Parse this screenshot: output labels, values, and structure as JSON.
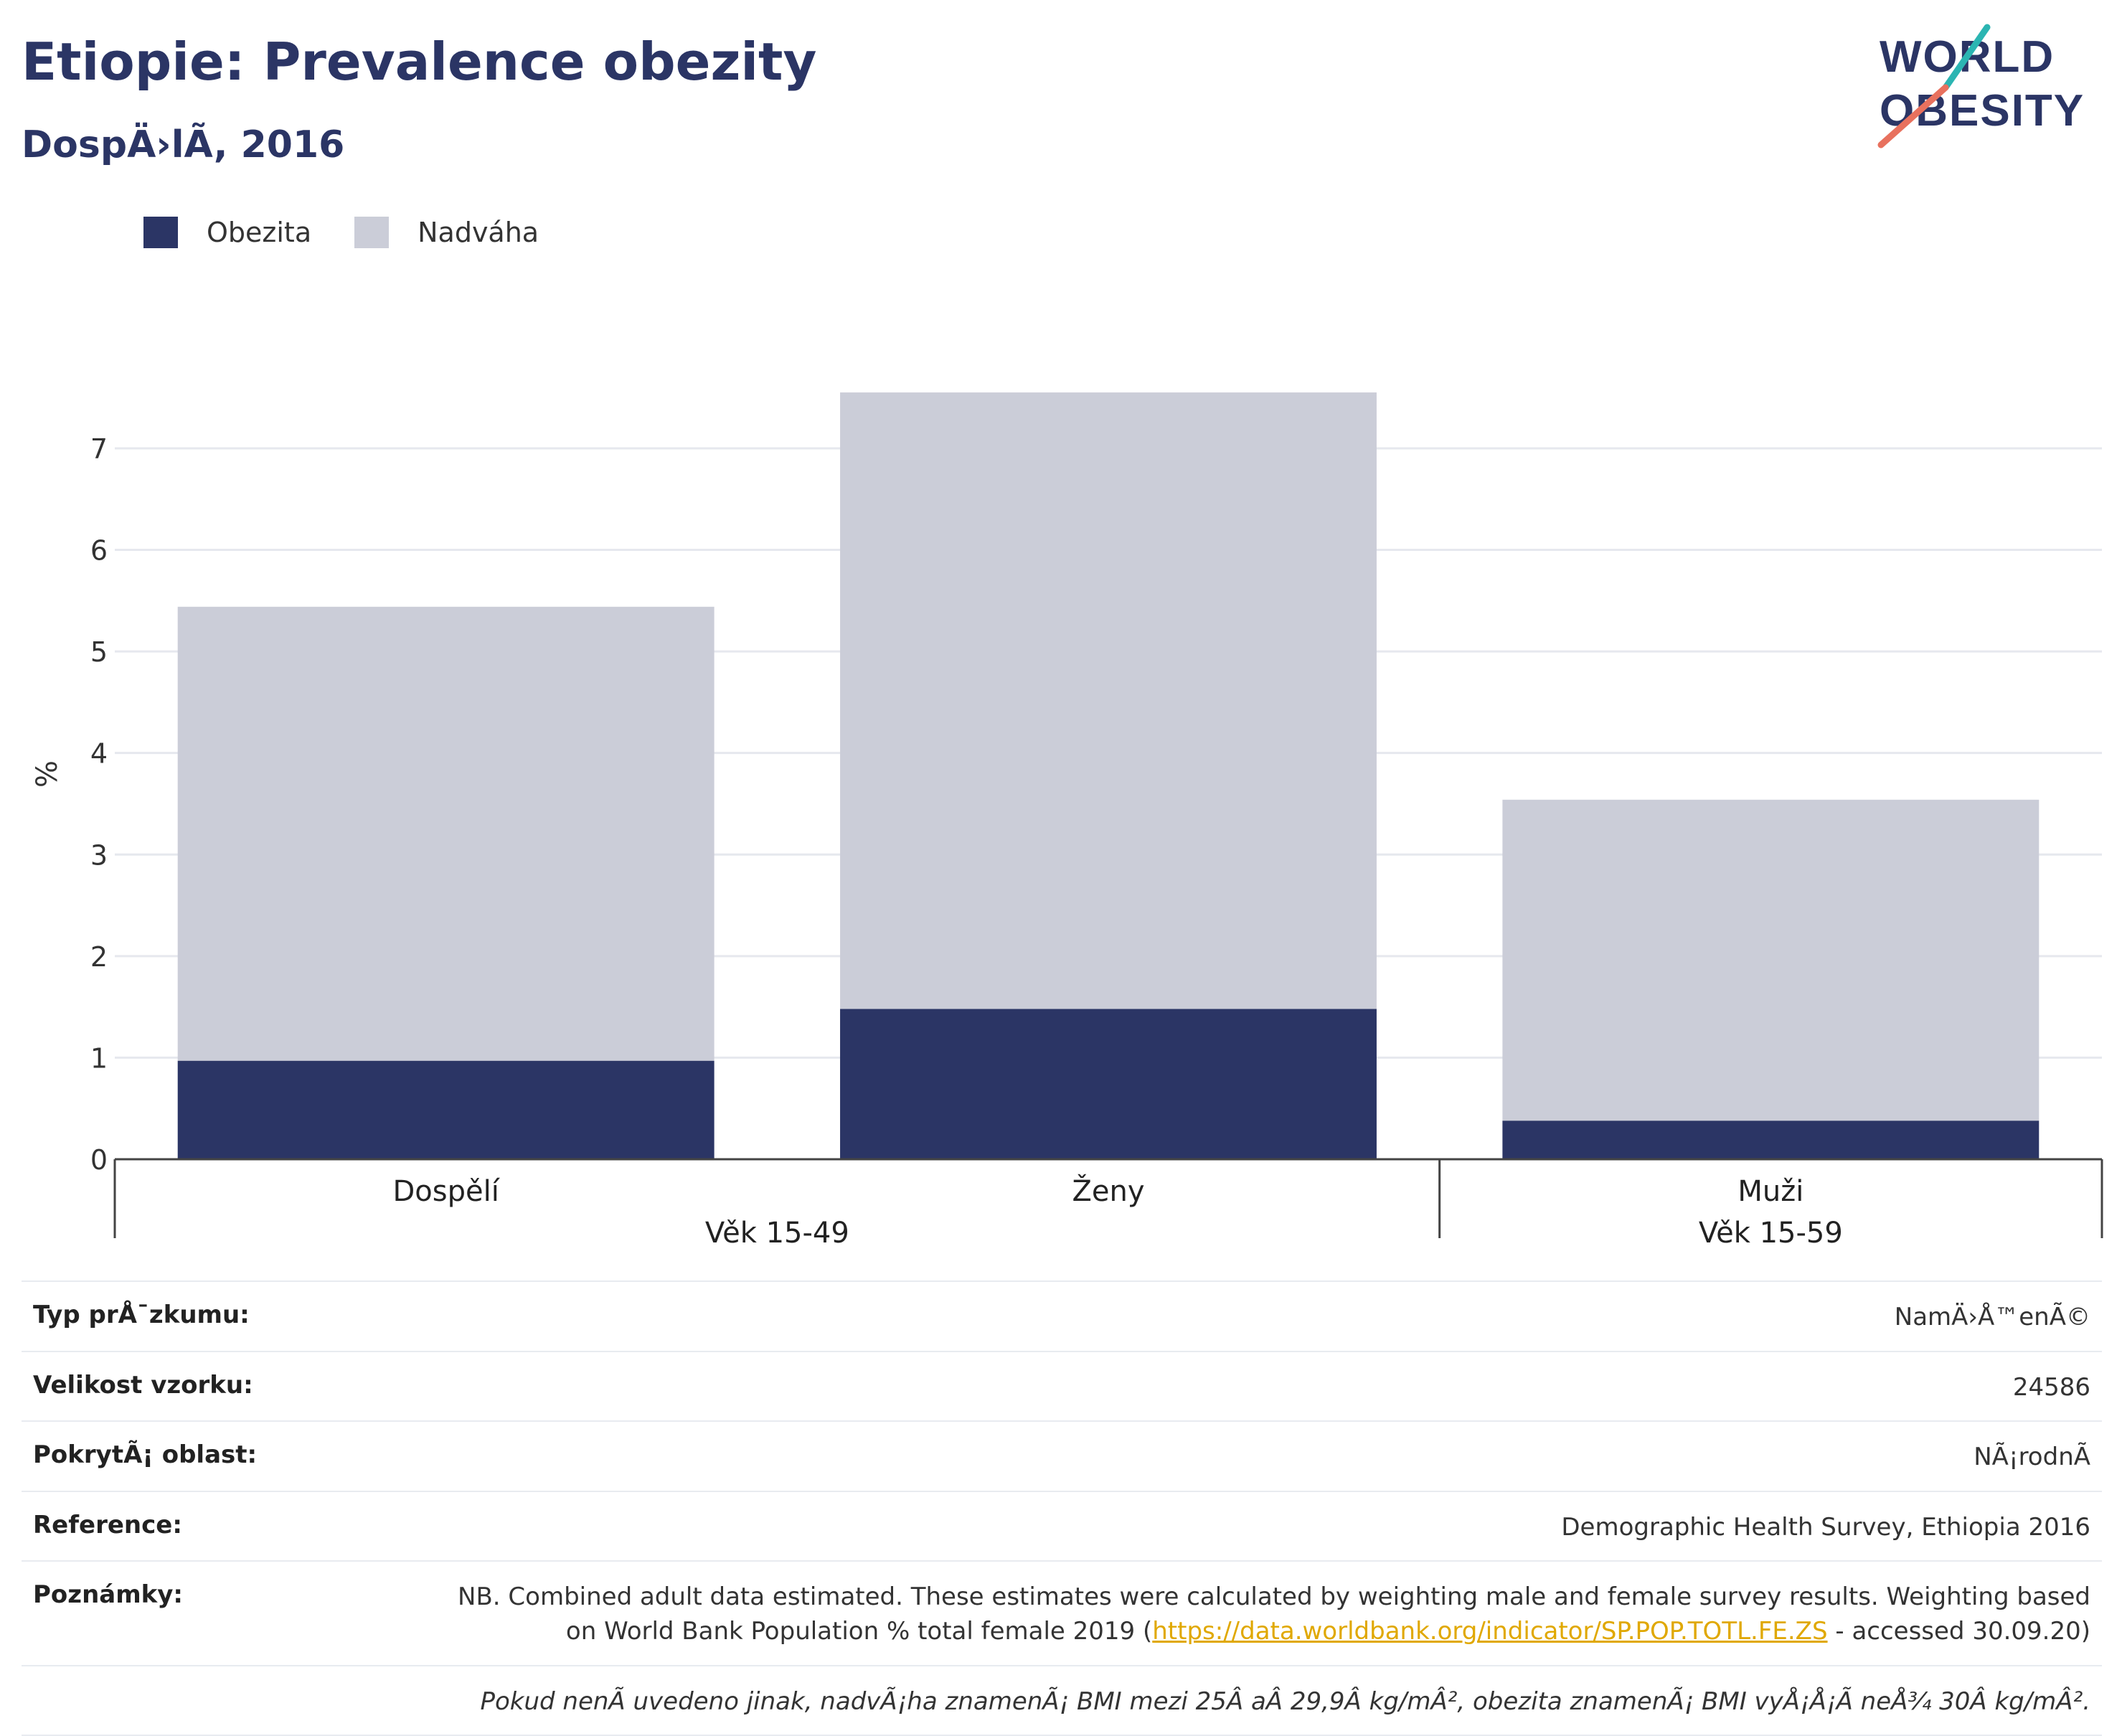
{
  "title": "Etiopie: Prevalence obezity",
  "subtitle": "DospÄ›lÃ, 2016",
  "logo": {
    "line1": "WORLD",
    "line2": "OBESITY",
    "accent_teal": "#2bb5b2",
    "accent_coral": "#e8715e",
    "text_color": "#2b3565"
  },
  "legend": [
    {
      "label": "Obezita",
      "color": "#2b3565"
    },
    {
      "label": "Nadváha",
      "color": "#cbcdd8"
    }
  ],
  "chart_data": {
    "type": "bar",
    "stacked": true,
    "categories": [
      "Dospělí",
      "Ženy",
      "Muži"
    ],
    "groups": [
      {
        "label": "Věk 15-49",
        "categories": [
          "Dospělí",
          "Ženy"
        ]
      },
      {
        "label": "Věk 15-59",
        "categories": [
          "Muži"
        ]
      }
    ],
    "series": [
      {
        "name": "Obezita",
        "values": [
          0.97,
          1.48,
          0.38
        ],
        "color": "#2b3565"
      },
      {
        "name": "Nadváha",
        "values": [
          4.47,
          6.07,
          3.16
        ],
        "color": "#cbcdd8"
      }
    ],
    "ylabel": "%",
    "ylim": [
      0,
      7.6
    ],
    "yticks": [
      0,
      1,
      2,
      3,
      4,
      5,
      6,
      7
    ],
    "grid": true,
    "legend_position": "top-left"
  },
  "info": {
    "survey_type_label": "Typ prÅ¯zkumu:",
    "survey_type_value": "NamÄ›Å™enÃ©",
    "sample_size_label": "Velikost vzorku:",
    "sample_size_value": "24586",
    "coverage_label": "PokrytÃ¡ oblast:",
    "coverage_value": "NÃ¡rodnÃ",
    "reference_label": "Reference:",
    "reference_value": "Demographic Health Survey, Ethiopia 2016",
    "notes_label": "Poznámky:",
    "notes_line1": "NB. Combined adult data estimated. These estimates were calculated by weighting male and female survey results. Weighting based",
    "notes_line2_pre": "on World Bank Population % total female 2019 (",
    "notes_link": "https://data.worldbank.org/indicator/SP.POP.TOTL.FE.ZS",
    "notes_line2_post": " - accessed 30.09.20)",
    "footnote": "Pokud nenÃ uvedeno jinak, nadvÃ¡ha znamenÃ¡ BMI mezi 25Â aÂ 29,9Â kg/mÂ², obezita znamenÃ¡ BMI vyÅ¡Å¡Ã neÅ¾ 30Â kg/mÂ²."
  }
}
